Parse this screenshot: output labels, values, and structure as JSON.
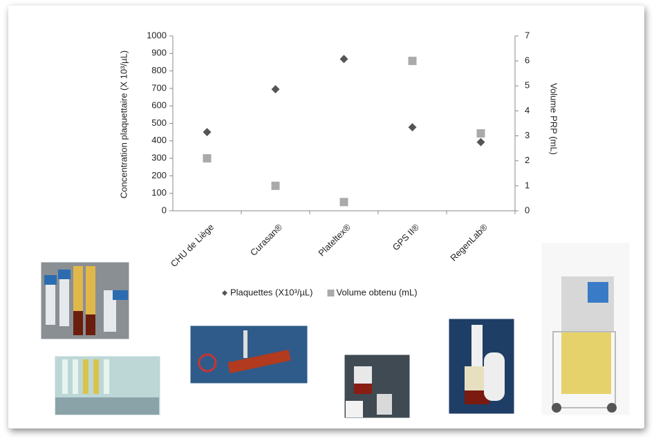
{
  "chart_data": {
    "type": "scatter",
    "y_label": "Concentration plaquettaire  (X 10³/µL)",
    "y2_label": "Volume PRP (mL)",
    "categories": [
      "CHU de Liège",
      "Curasan®",
      "Plateltex®",
      "GPS II®",
      "RegenLab®"
    ],
    "series": [
      {
        "name": "Plaquettes (X10³/µL)",
        "color": "#555555",
        "marker": "diamond",
        "values": [
          450,
          695,
          868,
          478,
          393
        ]
      },
      {
        "name": "Volume obtenu (mL)",
        "color": "#aaaaaa",
        "marker": "square",
        "axis": "y2",
        "values": [
          2.1,
          1.0,
          0.35,
          6.0,
          3.1
        ]
      }
    ],
    "ylim": [
      0,
      1000
    ],
    "yticks": [
      0,
      100,
      200,
      300,
      400,
      500,
      600,
      700,
      800,
      900,
      1000
    ],
    "y2lim": [
      0,
      7
    ],
    "y2ticks": [
      0,
      1,
      2,
      3,
      4,
      5,
      6,
      7
    ],
    "legend": "bottom",
    "grid": false
  }
}
